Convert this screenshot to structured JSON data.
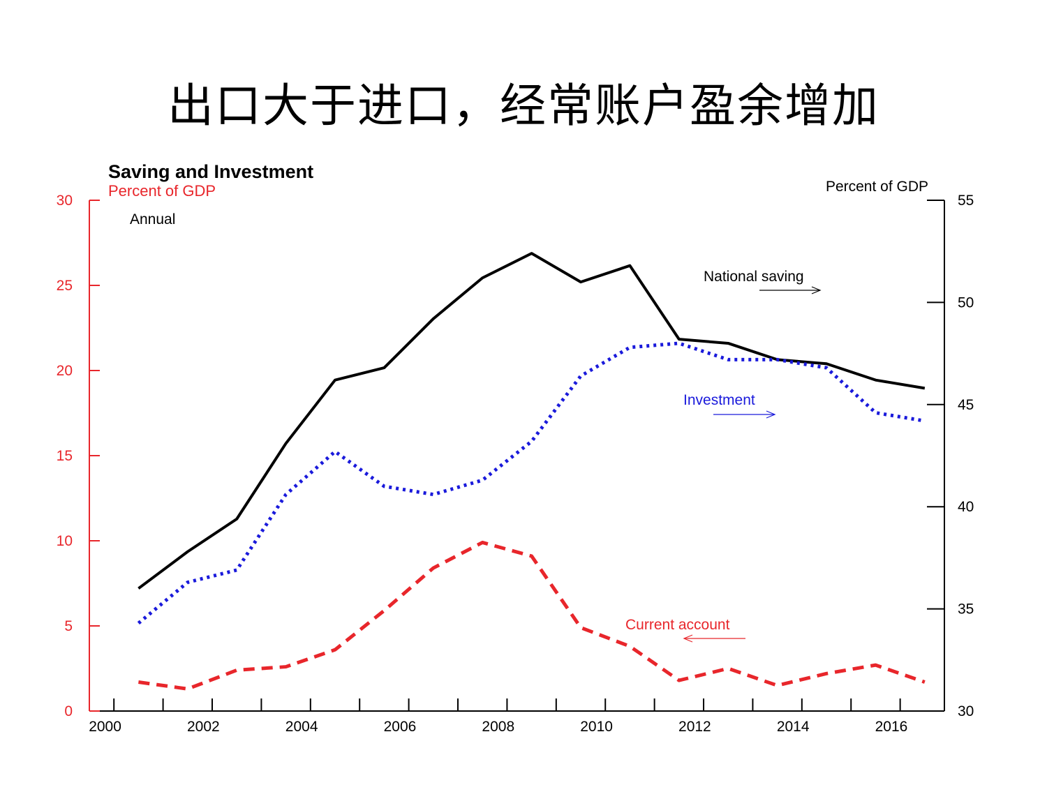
{
  "slide_title": "出口大于进口，经常账户盈余增加",
  "chart_data": {
    "type": "line",
    "title": "Saving and Investment",
    "subtitle": "Annual",
    "left_axis": {
      "label": "Percent of GDP",
      "ylim": [
        0,
        30
      ],
      "ticks": [
        0,
        5,
        10,
        15,
        20,
        25,
        30
      ],
      "color": "#e8262b"
    },
    "right_axis": {
      "label": "Percent of GDP",
      "ylim": [
        30,
        55
      ],
      "ticks": [
        30,
        35,
        40,
        45,
        50,
        55
      ],
      "color": "#000000"
    },
    "xlim": [
      1999.5,
      2016.9
    ],
    "x_ticks": [
      2000,
      2001,
      2002,
      2003,
      2004,
      2005,
      2006,
      2007,
      2008,
      2009,
      2010,
      2011,
      2012,
      2013,
      2014,
      2015,
      2016
    ],
    "x_tick_labels": [
      {
        "x": 2000,
        "label": "2000"
      },
      {
        "x": 2002,
        "label": "2002"
      },
      {
        "x": 2004,
        "label": "2004"
      },
      {
        "x": 2006,
        "label": "2006"
      },
      {
        "x": 2008,
        "label": "2008"
      },
      {
        "x": 2010,
        "label": "2010"
      },
      {
        "x": 2012,
        "label": "2012"
      },
      {
        "x": 2014,
        "label": "2014"
      },
      {
        "x": 2016,
        "label": "2016"
      }
    ],
    "x": [
      2000,
      2001,
      2002,
      2003,
      2004,
      2005,
      2006,
      2007,
      2008,
      2009,
      2010,
      2011,
      2012,
      2013,
      2014,
      2015,
      2016
    ],
    "series": [
      {
        "name": "National saving",
        "axis": "right",
        "color": "#000000",
        "style": "solid",
        "values": [
          36.0,
          37.8,
          39.4,
          43.1,
          46.2,
          46.8,
          49.2,
          51.2,
          52.4,
          51.0,
          51.8,
          48.2,
          48.0,
          47.2,
          47.0,
          46.2,
          45.8
        ]
      },
      {
        "name": "Investment",
        "axis": "right",
        "color": "#1a1adb",
        "style": "dotted",
        "values": [
          34.3,
          36.3,
          36.9,
          40.6,
          42.7,
          41.0,
          40.6,
          41.3,
          43.2,
          46.4,
          47.8,
          48.0,
          47.2,
          47.2,
          46.8,
          44.6,
          44.2
        ]
      },
      {
        "name": "Current account",
        "axis": "left",
        "color": "#e8262b",
        "style": "dashed",
        "values": [
          1.7,
          1.3,
          2.4,
          2.6,
          3.6,
          5.9,
          8.4,
          9.9,
          9.1,
          4.9,
          3.8,
          1.8,
          2.5,
          1.5,
          2.2,
          2.7,
          1.7
        ]
      }
    ],
    "annotations": [
      {
        "text": "National saving",
        "color": "#000000",
        "arrow": "right"
      },
      {
        "text": "Investment",
        "color": "#1a1adb",
        "arrow": "right"
      },
      {
        "text": "Current account",
        "color": "#e8262b",
        "arrow": "left"
      }
    ]
  }
}
